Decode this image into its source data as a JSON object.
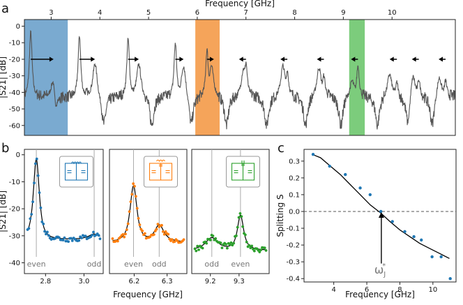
{
  "chart_data": [
    {
      "panel": "a",
      "type": "line",
      "xlabel": "Frequency [GHz]",
      "ylabel": "|S21| [dB]",
      "xlim": [
        2.45,
        11.3
      ],
      "ylim": [
        -66,
        4
      ],
      "xticks": [
        3,
        4,
        5,
        6,
        7,
        8,
        9,
        10
      ],
      "yticks": [
        0,
        -10,
        -20,
        -30,
        -40,
        -50,
        -60
      ],
      "x_axis_position": "top",
      "colors": {
        "trace": "#555555",
        "blue": "#7aaad0",
        "orange": "#f5a45a",
        "green": "#7ccc7c"
      },
      "highlight_bands": [
        {
          "color": "blue",
          "range": [
            2.45,
            3.34
          ]
        },
        {
          "color": "orange",
          "range": [
            5.96,
            6.46
          ]
        },
        {
          "color": "green",
          "range": [
            9.12,
            9.44
          ]
        }
      ],
      "resonances": [
        {
          "f_even": 2.58,
          "peak_db": -2,
          "f_odd": 3.05,
          "odd_db": -21,
          "splitting": 0.34,
          "arrow": "right"
        },
        {
          "f_even": 3.58,
          "peak_db": -4,
          "f_odd": 3.9,
          "odd_db": -20,
          "splitting": 0.27,
          "arrow": "right"
        },
        {
          "f_even": 4.58,
          "peak_db": -6,
          "f_odd": 4.8,
          "odd_db": -21,
          "splitting": 0.22,
          "arrow": "right"
        },
        {
          "f_even": 5.55,
          "peak_db": -8,
          "f_odd": 5.72,
          "odd_db": -21,
          "splitting": 0.14,
          "arrow": "right"
        },
        {
          "f_even": 6.2,
          "peak_db": -12,
          "f_odd": 6.29,
          "odd_db": -22,
          "splitting": 0.08,
          "arrow": "right"
        },
        {
          "f_even": 7.0,
          "peak_db": -20,
          "f_odd": 6.95,
          "odd_db": -24,
          "splitting": -0.06,
          "arrow": "left"
        },
        {
          "f_even": 7.85,
          "peak_db": -25,
          "f_odd": 7.76,
          "odd_db": -22,
          "splitting": -0.13,
          "arrow": "left"
        },
        {
          "f_even": 8.6,
          "peak_db": -28,
          "f_odd": 8.5,
          "odd_db": -23,
          "splitting": -0.15,
          "arrow": "left"
        },
        {
          "f_even": 9.3,
          "peak_db": -22,
          "f_odd": 9.18,
          "odd_db": -31,
          "splitting": -0.2,
          "arrow": "left"
        },
        {
          "f_even": 10.1,
          "peak_db": -32,
          "f_odd": 9.95,
          "odd_db": -27,
          "splitting": -0.27,
          "arrow": "left"
        },
        {
          "f_even": 10.55,
          "peak_db": -30,
          "f_odd": 10.43,
          "odd_db": -26,
          "splitting": -0.27,
          "arrow": "left"
        },
        {
          "f_even": 11.1,
          "peak_db": -31,
          "f_odd": 10.97,
          "odd_db": -28,
          "splitting": -0.4,
          "arrow": "left"
        }
      ]
    },
    {
      "panel": "b1",
      "type": "scatter",
      "xlabel": "",
      "ylabel": "|S21| [dB]",
      "xlim": [
        2.69,
        3.1
      ],
      "ylim": [
        -44,
        2
      ],
      "xticks": [
        2.8,
        3.0
      ],
      "yticks": [
        0,
        -10,
        -20,
        -30,
        -40
      ],
      "color": "#1f77b4",
      "peaks": [
        {
          "f": 2.752,
          "db": -1,
          "gamma": 0.02
        },
        {
          "f": 3.053,
          "db": -30.5,
          "gamma": 0.04
        }
      ],
      "floor_db": -34,
      "annotations": [
        "even",
        "odd"
      ],
      "annotation_freqs": [
        2.752,
        3.053
      ]
    },
    {
      "panel": "b2",
      "type": "scatter",
      "xlabel": "Frequency [GHz]",
      "ylabel": "",
      "xlim": [
        6.125,
        6.36
      ],
      "ylim": [
        -44,
        2
      ],
      "xticks": [
        6.2,
        6.3
      ],
      "yticks": [],
      "color": "#ff7f0e",
      "peaks": [
        {
          "f": 6.198,
          "db": -11,
          "gamma": 0.014
        },
        {
          "f": 6.276,
          "db": -26,
          "gamma": 0.02
        }
      ],
      "floor_db": -35,
      "annotations": [
        "even",
        "odd"
      ],
      "annotation_freqs": [
        6.198,
        6.276
      ]
    },
    {
      "panel": "b3",
      "type": "scatter",
      "xlabel": "",
      "ylabel": "",
      "xlim": [
        9.135,
        9.405
      ],
      "ylim": [
        -44,
        2
      ],
      "xticks": [
        9.2,
        9.3
      ],
      "yticks": [],
      "color": "#2ca02c",
      "peaks": [
        {
          "f": 9.305,
          "db": -22,
          "gamma": 0.015
        },
        {
          "f": 9.205,
          "db": -31,
          "gamma": 0.03
        }
      ],
      "floor_db": -38,
      "annotations": [
        "odd",
        "even"
      ],
      "annotation_freqs": [
        9.205,
        9.305
      ]
    },
    {
      "panel": "c",
      "type": "scatter",
      "xlabel": "Frequency [GHz]",
      "ylabel": "Splitting S",
      "xlim": [
        2.2,
        11.4
      ],
      "ylim": [
        -0.42,
        0.37
      ],
      "xticks": [
        4,
        6,
        8,
        10
      ],
      "yticks": [
        0.3,
        0.2,
        0.1,
        0.0,
        -0.1,
        -0.2,
        -0.3,
        -0.4
      ],
      "color": "#1f77b4",
      "points": [
        {
          "x": 2.75,
          "y": 0.34
        },
        {
          "x": 3.75,
          "y": 0.27
        },
        {
          "x": 4.7,
          "y": 0.22
        },
        {
          "x": 5.6,
          "y": 0.14
        },
        {
          "x": 6.2,
          "y": 0.1
        },
        {
          "x": 6.85,
          "y": 0.0
        },
        {
          "x": 7.55,
          "y": -0.06
        },
        {
          "x": 8.3,
          "y": -0.12
        },
        {
          "x": 8.85,
          "y": -0.15
        },
        {
          "x": 9.3,
          "y": -0.17
        },
        {
          "x": 9.95,
          "y": -0.27
        },
        {
          "x": 10.5,
          "y": -0.27
        },
        {
          "x": 11.05,
          "y": -0.4
        }
      ],
      "fit_curve": [
        {
          "x": 2.7,
          "y": 0.34
        },
        {
          "x": 3.2,
          "y": 0.32
        },
        {
          "x": 3.8,
          "y": 0.27
        },
        {
          "x": 4.4,
          "y": 0.22
        },
        {
          "x": 5.0,
          "y": 0.16
        },
        {
          "x": 5.6,
          "y": 0.1
        },
        {
          "x": 6.2,
          "y": 0.04
        },
        {
          "x": 6.85,
          "y": -0.01
        },
        {
          "x": 7.4,
          "y": -0.06
        },
        {
          "x": 8.0,
          "y": -0.11
        },
        {
          "x": 8.6,
          "y": -0.15
        },
        {
          "x": 9.2,
          "y": -0.19
        },
        {
          "x": 9.8,
          "y": -0.22
        },
        {
          "x": 10.4,
          "y": -0.25
        },
        {
          "x": 11.0,
          "y": -0.28
        }
      ],
      "zero_line": 0.0,
      "marker_freq": 6.88,
      "marker_label": "ω",
      "marker_sub": "J",
      "marker_sup": "*"
    }
  ],
  "panel_labels": {
    "a": "a",
    "b": "b",
    "c": "c"
  },
  "annotations": {
    "even": "even",
    "odd": "odd"
  }
}
